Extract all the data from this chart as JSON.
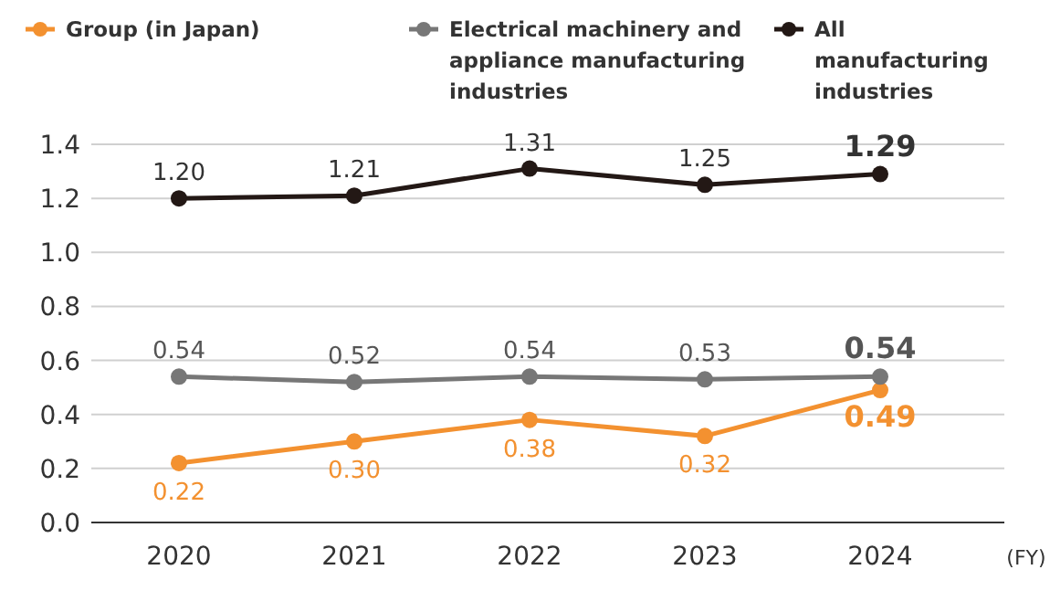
{
  "chart_data": {
    "type": "line",
    "categories": [
      "2020",
      "2021",
      "2022",
      "2023",
      "2024"
    ],
    "series": [
      {
        "name": "Group (in Japan)",
        "color": "#f39130",
        "values": [
          0.22,
          0.3,
          0.38,
          0.32,
          0.49
        ],
        "value_labels": [
          "0.22",
          "0.30",
          "0.38",
          "0.32",
          "0.49"
        ]
      },
      {
        "name": "Electrical machinery and appliance manufacturing industries",
        "color": "#777777",
        "values": [
          0.54,
          0.52,
          0.54,
          0.53,
          0.54
        ],
        "value_labels": [
          "0.54",
          "0.52",
          "0.54",
          "0.53",
          "0.54"
        ]
      },
      {
        "name": "All manufacturing industries",
        "color": "#231815",
        "values": [
          1.2,
          1.21,
          1.31,
          1.25,
          1.29
        ],
        "value_labels": [
          "1.20",
          "1.21",
          "1.31",
          "1.25",
          "1.29"
        ]
      }
    ],
    "ylim": [
      0,
      1.4
    ],
    "yticks": [
      {
        "value": 0,
        "label": "0.0"
      },
      0.2,
      0.4,
      0.6,
      0.8,
      {
        "value": 1,
        "label": "1.0"
      },
      1.2,
      1.4
    ],
    "grid": "y",
    "legend": "top",
    "marker": "circle",
    "line_style": "solid",
    "annotations": [
      "(FY)"
    ]
  }
}
